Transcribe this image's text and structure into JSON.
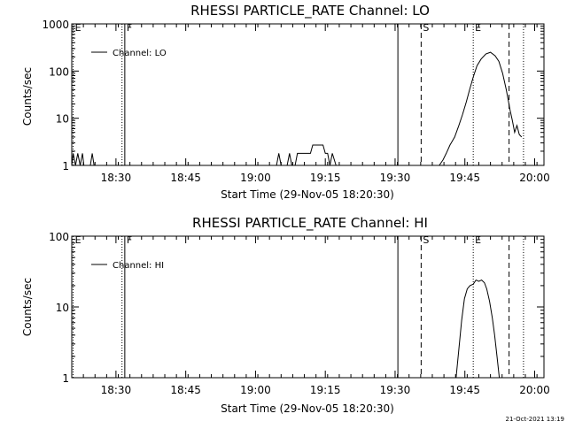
{
  "timestamp": "21-Oct-2021 13:19",
  "chart_data": [
    {
      "type": "line",
      "title": "RHESSI PARTICLE_RATE Channel: LO",
      "xlabel": "Start Time (29-Nov-05 18:20:30)",
      "ylabel": "Counts/sec",
      "yscale": "log",
      "ylim": [
        1,
        1000
      ],
      "xlim_minutes": [
        0,
        101.5
      ],
      "x_tick_labels": [
        "18:30",
        "18:45",
        "19:00",
        "19:15",
        "19:30",
        "19:45",
        "20:00"
      ],
      "x_tick_minutes": [
        9.5,
        24.5,
        39.5,
        54.5,
        69.5,
        84.5,
        99.5
      ],
      "y_tick_labels": [
        "1",
        "10",
        "100",
        "1000"
      ],
      "y_tick_values": [
        1,
        10,
        100,
        1000
      ],
      "legend": {
        "label": "Channel: LO",
        "placement": "top-left"
      },
      "markers": [
        {
          "label": "E",
          "minute": 0.3,
          "style": "dotted"
        },
        {
          "label": "",
          "minute": 10.8,
          "style": "dotted"
        },
        {
          "label": "F",
          "minute": 11.4,
          "style": "solid"
        },
        {
          "label": "",
          "minute": 70.1,
          "style": "solid"
        },
        {
          "label": "S",
          "minute": 75.1,
          "style": "dashed"
        },
        {
          "label": "E",
          "minute": 86.3,
          "style": "dotted"
        },
        {
          "label": "",
          "minute": 94.0,
          "style": "dashed"
        },
        {
          "label": "",
          "minute": 97.1,
          "style": "dotted"
        }
      ],
      "series": [
        {
          "segments": [
            [
              [
                0,
                1
              ],
              [
                0.3,
                1.8
              ],
              [
                0.8,
                1
              ],
              [
                1.3,
                1.8
              ],
              [
                1.8,
                1
              ],
              [
                2.3,
                1.8
              ],
              [
                2.6,
                1
              ],
              [
                4.0,
                1
              ],
              [
                4.4,
                1.8
              ],
              [
                4.8,
                1
              ]
            ],
            [
              [
                44.0,
                1
              ],
              [
                44.5,
                1.8
              ],
              [
                45.0,
                1
              ],
              [
                46.3,
                1
              ],
              [
                46.8,
                1.8
              ],
              [
                47.3,
                1
              ],
              [
                48.0,
                1
              ],
              [
                48.5,
                1.8
              ],
              [
                50.5,
                1.8
              ],
              [
                51.3,
                1.8
              ],
              [
                51.8,
                2.7
              ],
              [
                54.0,
                2.7
              ],
              [
                54.5,
                1.8
              ],
              [
                55.0,
                1.8
              ],
              [
                55.5,
                1
              ],
              [
                56.0,
                1.8
              ],
              [
                56.8,
                1
              ]
            ],
            [
              [
                79.0,
                1
              ],
              [
                79.8,
                1.3
              ],
              [
                80.5,
                1.8
              ],
              [
                81.3,
                2.7
              ],
              [
                82.3,
                4.0
              ],
              [
                83.2,
                7.0
              ],
              [
                84.0,
                12
              ],
              [
                84.8,
                22
              ],
              [
                85.5,
                40
              ],
              [
                86.3,
                75
              ],
              [
                87.1,
                130
              ],
              [
                88.0,
                180
              ],
              [
                89.0,
                230
              ],
              [
                90.0,
                250
              ],
              [
                91.0,
                210
              ],
              [
                91.8,
                160
              ],
              [
                92.6,
                90
              ],
              [
                93.4,
                40
              ],
              [
                94.2,
                15
              ],
              [
                94.7,
                9
              ],
              [
                95.2,
                5
              ],
              [
                95.7,
                7
              ],
              [
                96.2,
                4.5
              ],
              [
                96.7,
                4
              ]
            ]
          ]
        }
      ]
    },
    {
      "type": "line",
      "title": "RHESSI PARTICLE_RATE Channel: HI",
      "xlabel": "Start Time (29-Nov-05 18:20:30)",
      "ylabel": "Counts/sec",
      "yscale": "log",
      "ylim": [
        1,
        100
      ],
      "xlim_minutes": [
        0,
        101.5
      ],
      "x_tick_labels": [
        "18:30",
        "18:45",
        "19:00",
        "19:15",
        "19:30",
        "19:45",
        "20:00"
      ],
      "x_tick_minutes": [
        9.5,
        24.5,
        39.5,
        54.5,
        69.5,
        84.5,
        99.5
      ],
      "y_tick_labels": [
        "1",
        "10",
        "100"
      ],
      "y_tick_values": [
        1,
        10,
        100
      ],
      "legend": {
        "label": "Channel: HI",
        "placement": "top-left"
      },
      "markers": [
        {
          "label": "E",
          "minute": 0.3,
          "style": "dotted"
        },
        {
          "label": "",
          "minute": 10.8,
          "style": "dotted"
        },
        {
          "label": "F",
          "minute": 11.4,
          "style": "solid"
        },
        {
          "label": "",
          "minute": 70.1,
          "style": "solid"
        },
        {
          "label": "S",
          "minute": 75.1,
          "style": "dashed"
        },
        {
          "label": "E",
          "minute": 86.3,
          "style": "dotted"
        },
        {
          "label": "",
          "minute": 94.0,
          "style": "dashed"
        },
        {
          "label": "",
          "minute": 97.1,
          "style": "dotted"
        }
      ],
      "series": [
        {
          "segments": [
            [
              [
                82.6,
                1
              ],
              [
                83.2,
                2.5
              ],
              [
                83.8,
                6.5
              ],
              [
                84.4,
                13
              ],
              [
                85.0,
                18
              ],
              [
                85.6,
                20
              ],
              [
                86.3,
                21
              ],
              [
                86.9,
                24
              ],
              [
                87.5,
                23
              ],
              [
                88.1,
                24
              ],
              [
                88.7,
                22
              ],
              [
                89.2,
                18
              ],
              [
                89.8,
                12
              ],
              [
                90.4,
                7
              ],
              [
                90.9,
                4
              ],
              [
                91.4,
                2
              ],
              [
                91.9,
                1
              ]
            ]
          ]
        }
      ]
    }
  ]
}
